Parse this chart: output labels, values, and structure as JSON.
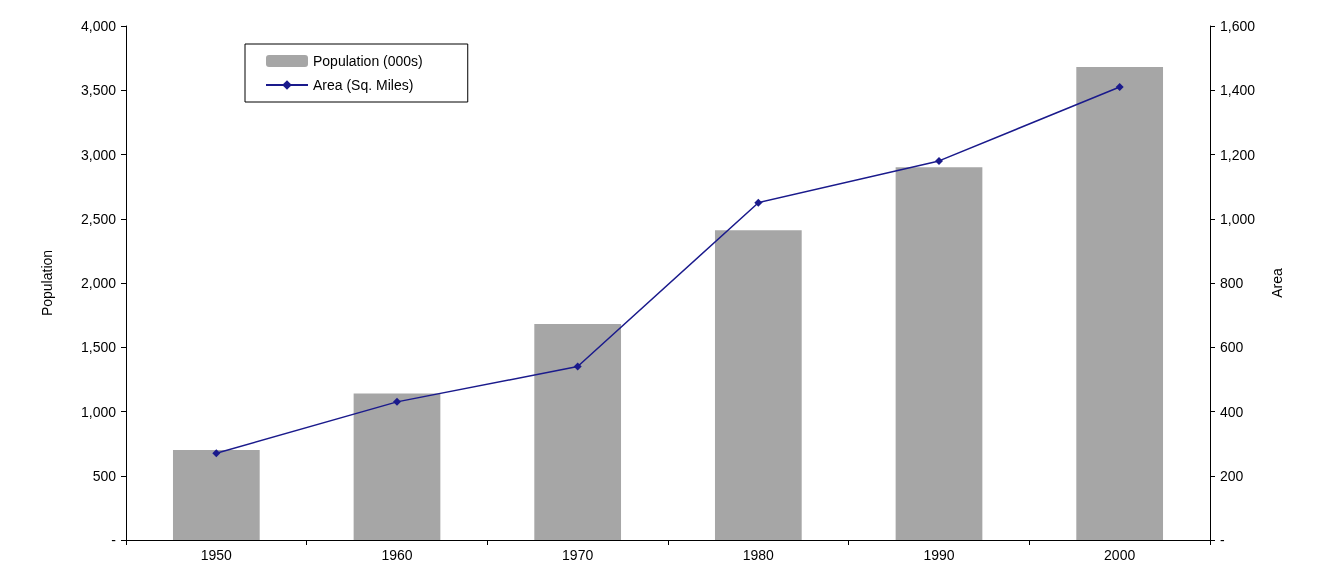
{
  "chart_data": {
    "type": "bar",
    "categories": [
      "1950",
      "1960",
      "1970",
      "1980",
      "1990",
      "2000"
    ],
    "series": [
      {
        "name": "Population (000s)",
        "color": "#a6a6a6",
        "values": [
          700,
          1140,
          1680,
          2410,
          2900,
          3680
        ]
      },
      {
        "name": "Area (Sq. Miles)",
        "type": "line",
        "axis": "y2",
        "color": "#1a1a8c",
        "marker": "diamond",
        "values": [
          270,
          430,
          540,
          1050,
          1180,
          1410
        ]
      }
    ],
    "ylabel": "Population",
    "y2label": "Area",
    "ylim": [
      0,
      4000
    ],
    "yticks": [
      {
        "value": 0,
        "label": "-"
      },
      {
        "value": 500,
        "label": "500"
      },
      {
        "value": 1000,
        "label": "1,000"
      },
      {
        "value": 1500,
        "label": "1,500"
      },
      {
        "value": 2000,
        "label": "2,000"
      },
      {
        "value": 2500,
        "label": "2,500"
      },
      {
        "value": 3000,
        "label": "3,000"
      },
      {
        "value": 3500,
        "label": "3,500"
      },
      {
        "value": 4000,
        "label": "4,000"
      }
    ],
    "y2lim": [
      0,
      1600
    ],
    "y2ticks": [
      {
        "value": 0,
        "label": "-"
      },
      {
        "value": 200,
        "label": "200"
      },
      {
        "value": 400,
        "label": "400"
      },
      {
        "value": 600,
        "label": "600"
      },
      {
        "value": 800,
        "label": "800"
      },
      {
        "value": 1000,
        "label": "1,000"
      },
      {
        "value": 1200,
        "label": "1,200"
      },
      {
        "value": 1400,
        "label": "1,400"
      },
      {
        "value": 1600,
        "label": "1,600"
      }
    ],
    "legend": "top left",
    "grid": false
  }
}
